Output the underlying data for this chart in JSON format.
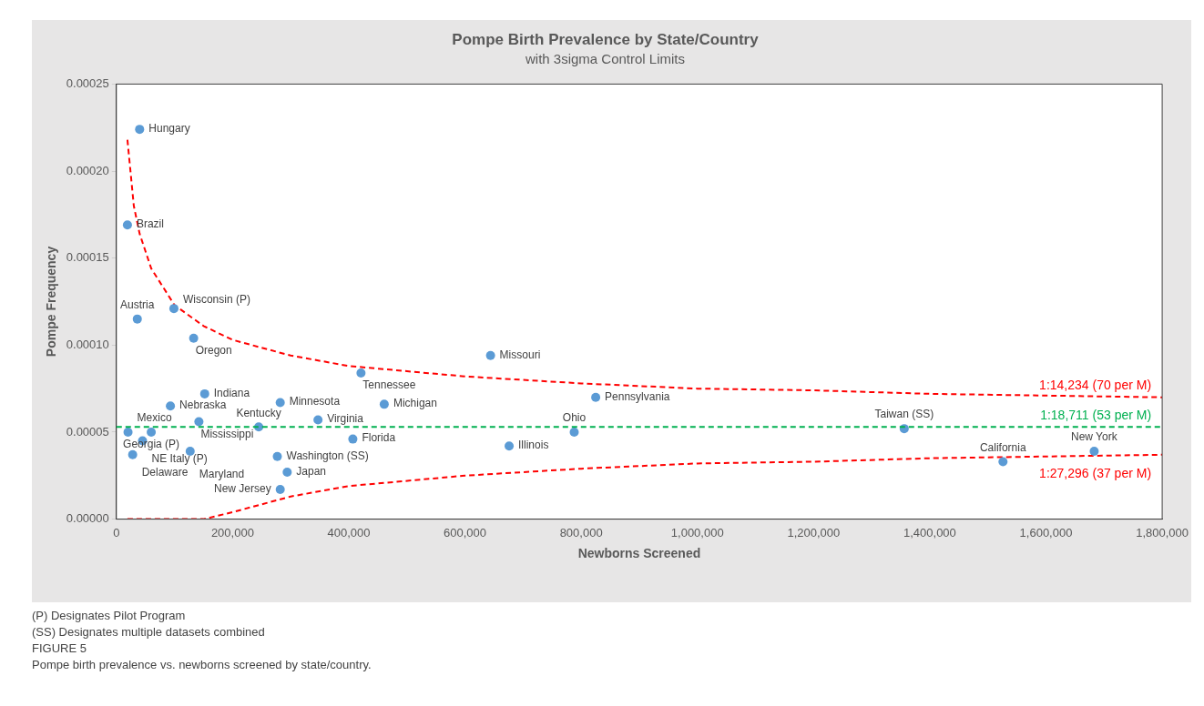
{
  "chart_data": {
    "type": "scatter",
    "title": "Pompe Birth Prevalence by State/Country",
    "subtitle": "with 3sigma Control Limits",
    "xlabel": "Newborns Screened",
    "ylabel": "Pompe Frequency",
    "xlim": [
      0,
      1800000
    ],
    "xticks": [
      0,
      {
        "value": 200000,
        "label": "200,000"
      },
      {
        "value": 400000,
        "label": "400,000"
      },
      {
        "value": 600000,
        "label": "600,000"
      },
      {
        "value": 800000,
        "label": "800,000"
      },
      {
        "value": 1000000,
        "label": "1,000,000"
      },
      {
        "value": 1200000,
        "label": "1,200,000"
      },
      {
        "value": 1400000,
        "label": "1,400,000"
      },
      {
        "value": 1600000,
        "label": "1,600,000"
      },
      {
        "value": 1800000,
        "label": "1,800,000"
      }
    ],
    "ylim": [
      0,
      0.00025
    ],
    "yticks": [
      {
        "value": 0,
        "label": "0.00000"
      },
      {
        "value": 5e-05,
        "label": "0.00005"
      },
      {
        "value": 0.0001,
        "label": "0.00010"
      },
      {
        "value": 0.00015,
        "label": "0.00015"
      },
      {
        "value": 0.0002,
        "label": "0.00020"
      },
      {
        "value": 0.00025,
        "label": "0.00025"
      }
    ],
    "grid": false,
    "legend": false,
    "series": [
      {
        "color": "#5b9bd5",
        "marker": "circle",
        "x": [
          40000,
          19000,
          99000,
          36000,
          133000,
          152000,
          93000,
          142000,
          20000,
          60000,
          45000,
          127000,
          28000,
          245000,
          282000,
          347000,
          277000,
          294000,
          282000,
          407000,
          421000,
          461000,
          644000,
          676000,
          788000,
          825000,
          1356000,
          1526000,
          1683000
        ],
        "values": [
          0.000224,
          0.000169,
          0.000121,
          0.000115,
          0.000104,
          7.2e-05,
          6.5e-05,
          5.6e-05,
          5e-05,
          5e-05,
          4.5e-05,
          3.9e-05,
          3.7e-05,
          5.3e-05,
          6.7e-05,
          5.7e-05,
          3.6e-05,
          2.7e-05,
          1.7e-05,
          4.6e-05,
          8.4e-05,
          6.6e-05,
          9.4e-05,
          4.2e-05,
          5e-05,
          7e-05,
          5.2e-05,
          3.3e-05,
          3.9e-05
        ]
      },
      {
        "type": "line",
        "name": "1:14,234 (70 per M)",
        "color": "#ff0000",
        "marker": "none",
        "line_style": "dashed",
        "x": [
          19000,
          30000,
          40000,
          60000,
          100000,
          150000,
          200000,
          300000,
          400000,
          600000,
          800000,
          1000000,
          1200000,
          1400000,
          1600000,
          1800000
        ],
        "values": [
          0.000218,
          0.00018,
          0.000164,
          0.000144,
          0.000123,
          0.000111,
          0.000103,
          9.4e-05,
          8.8e-05,
          8.2e-05,
          7.8e-05,
          7.5e-05,
          7.4e-05,
          7.2e-05,
          7.1e-05,
          7e-05
        ]
      },
      {
        "type": "line",
        "name": "1:27,296 (37 per M)",
        "color": "#ff0000",
        "marker": "none",
        "line_style": "dashed",
        "x": [
          19000,
          150000,
          200000,
          300000,
          400000,
          600000,
          800000,
          1000000,
          1200000,
          1400000,
          1600000,
          1800000
        ],
        "values": [
          0,
          0,
          4e-06,
          1.3e-05,
          1.9e-05,
          2.5e-05,
          2.9e-05,
          3.2e-05,
          3.3e-05,
          3.5e-05,
          3.6e-05,
          3.7e-05
        ]
      }
    ],
    "ref_lines": [
      {
        "axis": "y",
        "value": 5.3e-05,
        "label": "1:18,711 (53 per M)",
        "color": "#00b050",
        "line_style": "dashed"
      }
    ],
    "annotations": [
      {
        "text": "Hungary",
        "x": 40000,
        "y": 0.000224
      },
      {
        "text": "Brazil",
        "x": 19000,
        "y": 0.000169
      },
      {
        "text": "Wisconsin (P)",
        "x": 99000,
        "y": 0.000121
      },
      {
        "text": "Austria",
        "x": 36000,
        "y": 0.000115
      },
      {
        "text": "Oregon",
        "x": 133000,
        "y": 0.000104
      },
      {
        "text": "Indiana",
        "x": 152000,
        "y": 7.2e-05
      },
      {
        "text": "Nebraska",
        "x": 93000,
        "y": 6.5e-05
      },
      {
        "text": "Mississippi",
        "x": 142000,
        "y": 5.6e-05
      },
      {
        "text": "Mexico",
        "x": 20000,
        "y": 5e-05
      },
      {
        "text": "Georgia (P)",
        "x": 60000,
        "y": 5e-05
      },
      {
        "text": "NE Italy (P)",
        "x": 45000,
        "y": 4.5e-05
      },
      {
        "text": "Maryland",
        "x": 127000,
        "y": 3.9e-05
      },
      {
        "text": "Delaware",
        "x": 28000,
        "y": 3.7e-05
      },
      {
        "text": "Kentucky",
        "x": 245000,
        "y": 5.3e-05
      },
      {
        "text": "Minnesota",
        "x": 282000,
        "y": 6.7e-05
      },
      {
        "text": "Virginia",
        "x": 347000,
        "y": 5.7e-05
      },
      {
        "text": "Washington (SS)",
        "x": 277000,
        "y": 3.6e-05
      },
      {
        "text": "Japan",
        "x": 294000,
        "y": 2.7e-05
      },
      {
        "text": "New Jersey",
        "x": 282000,
        "y": 1.7e-05
      },
      {
        "text": "Florida",
        "x": 407000,
        "y": 4.6e-05
      },
      {
        "text": "Tennessee",
        "x": 421000,
        "y": 8.4e-05
      },
      {
        "text": "Michigan",
        "x": 461000,
        "y": 6.6e-05
      },
      {
        "text": "Missouri",
        "x": 644000,
        "y": 9.4e-05
      },
      {
        "text": "Illinois",
        "x": 676000,
        "y": 4.2e-05
      },
      {
        "text": "Ohio",
        "x": 788000,
        "y": 5e-05
      },
      {
        "text": "Pennsylvania",
        "x": 825000,
        "y": 7e-05
      },
      {
        "text": "Taiwan (SS)",
        "x": 1356000,
        "y": 5.2e-05
      },
      {
        "text": "California",
        "x": 1526000,
        "y": 3.3e-05
      },
      {
        "text": "New York",
        "x": 1683000,
        "y": 3.9e-05
      },
      "(P) Designates Pilot Program",
      "(SS) Designates multiple datasets combined",
      "FIGURE 5",
      "Pompe birth prevalence vs. newborns screened by state/country."
    ]
  }
}
